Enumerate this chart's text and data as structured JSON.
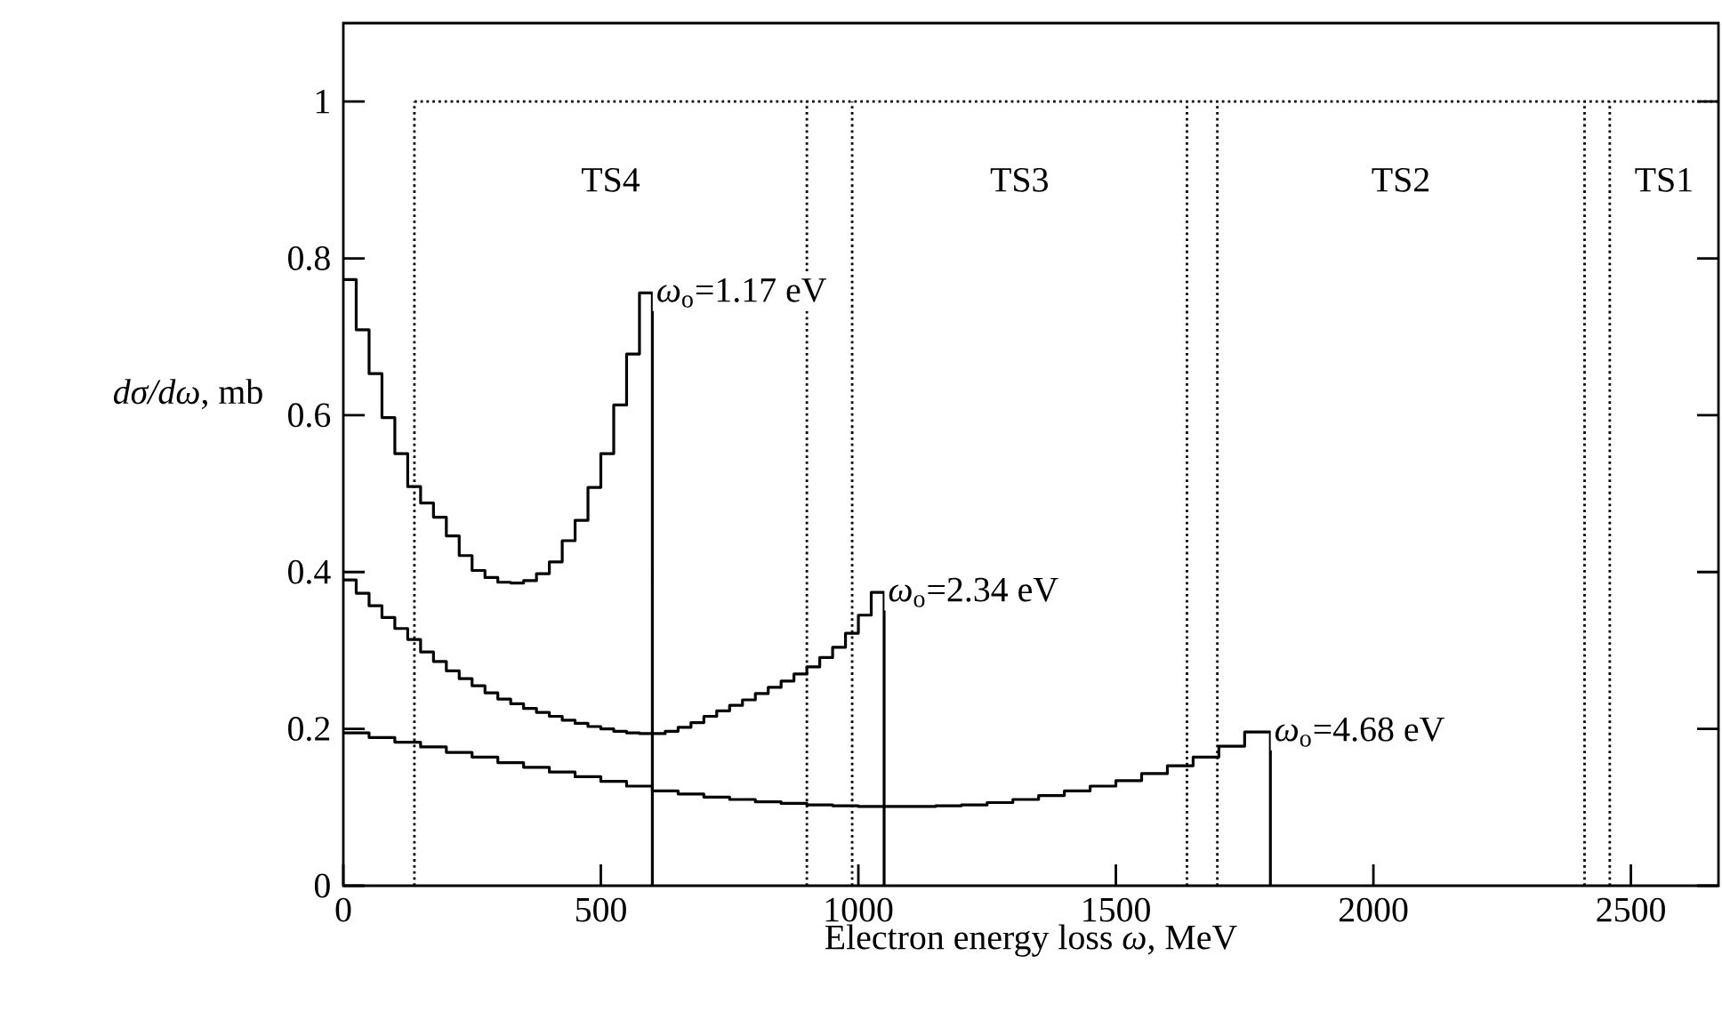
{
  "chart_data": {
    "type": "step",
    "xlabel": "Electron energy loss *ω*, MeV",
    "ylabel": "*dσ/dω*, mb",
    "xlim": [
      0,
      2670
    ],
    "ylim": [
      0,
      1.1
    ],
    "xticks": [
      0,
      500,
      1000,
      1500,
      2000,
      2500
    ],
    "yticks": [
      0,
      0.2,
      0.4,
      0.6,
      0.8,
      1
    ],
    "grid": false,
    "series": [
      {
        "color": "#000000",
        "x": [
          0,
          25,
          50,
          75,
          100,
          125,
          150,
          175,
          200,
          225,
          250,
          275,
          300,
          325,
          350,
          375,
          400,
          425,
          450,
          475,
          500,
          525,
          550,
          575,
          600
        ],
        "values": [
          0.773,
          0.709,
          0.653,
          0.597,
          0.551,
          0.509,
          0.488,
          0.47,
          0.446,
          0.421,
          0.402,
          0.393,
          0.387,
          0.386,
          0.389,
          0.398,
          0.413,
          0.44,
          0.466,
          0.508,
          0.551,
          0.613,
          0.678,
          0.756,
          0
        ]
      },
      {
        "color": "#000000",
        "x": [
          0,
          25,
          50,
          75,
          100,
          125,
          150,
          175,
          200,
          225,
          250,
          275,
          300,
          325,
          350,
          375,
          400,
          425,
          450,
          475,
          500,
          525,
          550,
          575,
          600,
          625,
          650,
          675,
          700,
          725,
          750,
          775,
          800,
          825,
          850,
          875,
          900,
          925,
          950,
          975,
          1000,
          1025,
          1050
        ],
        "values": [
          0.39,
          0.373,
          0.357,
          0.342,
          0.328,
          0.314,
          0.298,
          0.286,
          0.274,
          0.264,
          0.255,
          0.246,
          0.238,
          0.232,
          0.226,
          0.221,
          0.216,
          0.211,
          0.207,
          0.203,
          0.2,
          0.197,
          0.195,
          0.194,
          0.194,
          0.197,
          0.202,
          0.208,
          0.216,
          0.223,
          0.23,
          0.237,
          0.245,
          0.253,
          0.261,
          0.27,
          0.279,
          0.291,
          0.304,
          0.322,
          0.345,
          0.374,
          0
        ]
      },
      {
        "color": "#000000",
        "x": [
          0,
          50,
          100,
          150,
          200,
          250,
          300,
          350,
          400,
          450,
          500,
          550,
          600,
          650,
          700,
          750,
          800,
          850,
          900,
          950,
          1000,
          1050,
          1100,
          1150,
          1200,
          1250,
          1300,
          1350,
          1400,
          1450,
          1500,
          1550,
          1600,
          1650,
          1700,
          1750,
          1800
        ],
        "values": [
          0.195,
          0.189,
          0.183,
          0.177,
          0.17,
          0.164,
          0.157,
          0.151,
          0.145,
          0.139,
          0.133,
          0.127,
          0.121,
          0.117,
          0.113,
          0.11,
          0.107,
          0.105,
          0.103,
          0.102,
          0.101,
          0.101,
          0.101,
          0.102,
          0.103,
          0.106,
          0.11,
          0.115,
          0.121,
          0.127,
          0.134,
          0.143,
          0.153,
          0.164,
          0.178,
          0.196,
          0
        ]
      }
    ],
    "ref_lines": [
      {
        "axis": "y",
        "value": 1,
        "line_style": "dotted"
      },
      {
        "axis": "x",
        "value": 138,
        "line_style": "dotted"
      },
      {
        "axis": "x",
        "value": 900,
        "line_style": "dotted"
      },
      {
        "axis": "x",
        "value": 988,
        "line_style": "dotted"
      },
      {
        "axis": "x",
        "value": 1638,
        "line_style": "dotted"
      },
      {
        "axis": "x",
        "value": 1697,
        "line_style": "dotted"
      },
      {
        "axis": "x",
        "value": 2410,
        "line_style": "dotted"
      },
      {
        "axis": "x",
        "value": 2459,
        "line_style": "dotted"
      }
    ],
    "annotations": [
      "TS4",
      "TS3",
      "TS2",
      "TS1",
      {
        "text": "*ω*$_{o}$=1.17 eV",
        "x": 600,
        "y": 0.756
      },
      {
        "text": "*ω*$_{o}$=2.34 eV",
        "x": 1050,
        "y": 0.374
      },
      {
        "text": "*ω*$_{o}$=4.68 eV",
        "x": 1800,
        "y": 0.196
      }
    ]
  }
}
